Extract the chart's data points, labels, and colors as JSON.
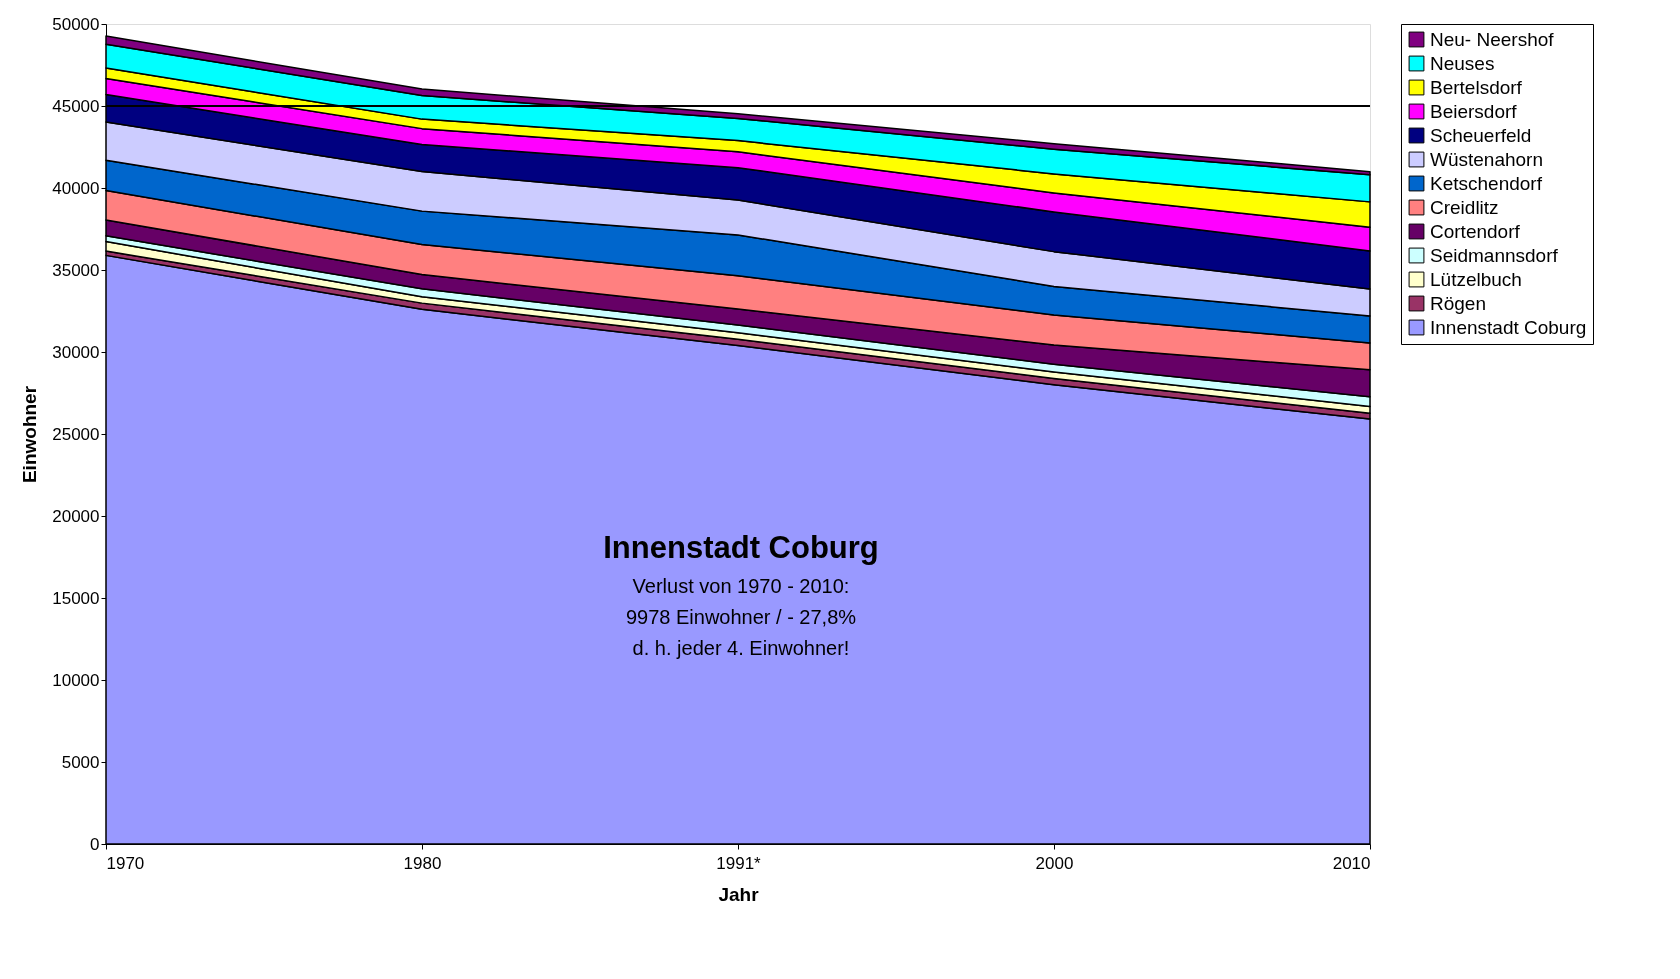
{
  "chart_data": {
    "type": "area",
    "stacked": true,
    "xlabel": "Jahr",
    "ylabel": "Einwohner",
    "categories": [
      "1970",
      "1980",
      "1991*",
      "2000",
      "2010"
    ],
    "ylim": [
      0,
      50000
    ],
    "yticks": [
      0,
      5000,
      10000,
      15000,
      20000,
      25000,
      30000,
      35000,
      40000,
      45000,
      50000
    ],
    "grid": false,
    "legend": "right",
    "ref_lines": [
      {
        "axis": "y",
        "value": 45000,
        "color": "#000000"
      }
    ],
    "annotations": [
      "Innenstadt Coburg",
      "Verlust von 1970 - 2010:",
      "9978 Einwohner / - 27,8%",
      "d. h. jeder 4. Einwohner!"
    ],
    "series": [
      {
        "name": "Innenstadt Coburg",
        "color": "#9999ff",
        "values": [
          35892,
          32600,
          30400,
          28000,
          25914
        ]
      },
      {
        "name": "Rögen",
        "color": "#993366",
        "values": [
          260,
          380,
          380,
          390,
          350
        ]
      },
      {
        "name": "Lützelbuch",
        "color": "#ffffcc",
        "values": [
          580,
          390,
          390,
          390,
          420
        ]
      },
      {
        "name": "Seidmannsdorf",
        "color": "#ccffff",
        "values": [
          350,
          480,
          480,
          480,
          580
        ]
      },
      {
        "name": "Cortendorf",
        "color": "#660066",
        "values": [
          970,
          870,
          970,
          1160,
          1650
        ]
      },
      {
        "name": "Creidlitz",
        "color": "#ff8080",
        "values": [
          1790,
          1840,
          2030,
          1840,
          1640
        ]
      },
      {
        "name": "Ketschendorf",
        "color": "#0066cc",
        "values": [
          1850,
          2030,
          2490,
          1740,
          1640
        ]
      },
      {
        "name": "Wüstenahorn",
        "color": "#ccccff",
        "values": [
          2330,
          2420,
          2130,
          2120,
          1650
        ]
      },
      {
        "name": "Scheuerfeld",
        "color": "#000080",
        "values": [
          1680,
          1640,
          1970,
          2420,
          2320
        ]
      },
      {
        "name": "Beiersdorf",
        "color": "#ff00ff",
        "values": [
          970,
          970,
          970,
          1160,
          1450
        ]
      },
      {
        "name": "Bertelsdorf",
        "color": "#ffff00",
        "values": [
          640,
          580,
          680,
          1160,
          1540
        ]
      },
      {
        "name": "Neuses",
        "color": "#00ffff",
        "values": [
          1460,
          1440,
          1350,
          1510,
          1650
        ]
      },
      {
        "name": "Neu- Neershof",
        "color": "#800080",
        "values": [
          490,
          390,
          290,
          330,
          190
        ]
      }
    ]
  }
}
